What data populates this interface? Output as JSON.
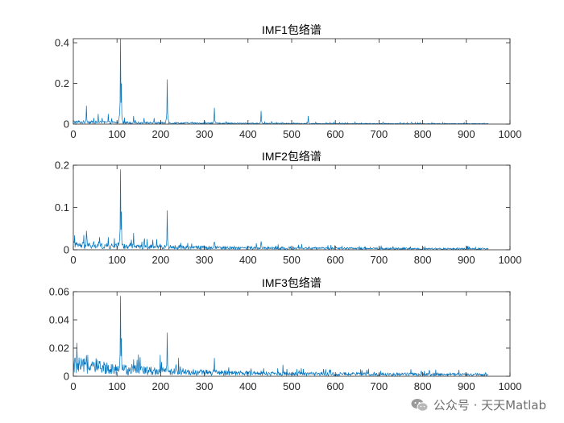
{
  "watermark": {
    "text": "公众号 · 天天Matlab"
  },
  "colors": {
    "line": "#0072BD",
    "axis": "#262626"
  },
  "chart_data": [
    {
      "type": "line",
      "title": "IMF1包络谱",
      "xlim": [
        0,
        1000
      ],
      "ylim": [
        0,
        0.42
      ],
      "xticks": [
        0,
        100,
        200,
        300,
        400,
        500,
        600,
        700,
        800,
        900,
        1000
      ],
      "yticks": [
        0,
        0.2,
        0.4
      ],
      "ytick_labels": [
        "0",
        "0.2",
        "0.4"
      ],
      "baseline": 0.004,
      "noise_decay": 250,
      "peaks": [
        [
          30,
          0.09
        ],
        [
          47,
          0.03
        ],
        [
          57,
          0.05
        ],
        [
          80,
          0.05
        ],
        [
          108,
          0.42
        ],
        [
          110,
          0.2
        ],
        [
          138,
          0.04
        ],
        [
          162,
          0.03
        ],
        [
          185,
          0.03
        ],
        [
          215,
          0.22
        ],
        [
          323,
          0.08
        ],
        [
          430,
          0.065
        ],
        [
          538,
          0.04
        ],
        [
          645,
          0.01
        ],
        [
          757,
          0.006
        ]
      ],
      "grid": false,
      "legend": "none"
    },
    {
      "type": "line",
      "title": "IMF2包络谱",
      "xlim": [
        0,
        1000
      ],
      "ylim": [
        0,
        0.2
      ],
      "xticks": [
        0,
        100,
        200,
        300,
        400,
        500,
        600,
        700,
        800,
        900,
        1000
      ],
      "yticks": [
        0,
        0.1,
        0.2
      ],
      "ytick_labels": [
        "0",
        "0.1",
        "0.2"
      ],
      "baseline": 0.004,
      "noise_decay": 350,
      "peaks": [
        [
          30,
          0.045
        ],
        [
          47,
          0.02
        ],
        [
          60,
          0.03
        ],
        [
          80,
          0.03
        ],
        [
          108,
          0.19
        ],
        [
          110,
          0.09
        ],
        [
          138,
          0.04
        ],
        [
          162,
          0.02
        ],
        [
          215,
          0.093
        ],
        [
          323,
          0.018
        ],
        [
          430,
          0.02
        ],
        [
          540,
          0.008
        ],
        [
          680,
          0.006
        ],
        [
          755,
          0.005
        ]
      ],
      "grid": false,
      "legend": "none"
    },
    {
      "type": "line",
      "title": "IMF3包络谱",
      "xlim": [
        0,
        1000
      ],
      "ylim": [
        0,
        0.06
      ],
      "xticks": [
        0,
        100,
        200,
        300,
        400,
        500,
        600,
        700,
        800,
        900,
        1000
      ],
      "yticks": [
        0,
        0.02,
        0.04,
        0.06
      ],
      "ytick_labels": [
        "0",
        "0.02",
        "0.04",
        "0.06"
      ],
      "baseline": 0.003,
      "noise_decay": 200,
      "peaks": [
        [
          30,
          0.015
        ],
        [
          47,
          0.008
        ],
        [
          60,
          0.009
        ],
        [
          80,
          0.008
        ],
        [
          108,
          0.057
        ],
        [
          110,
          0.027
        ],
        [
          138,
          0.012
        ],
        [
          162,
          0.007
        ],
        [
          215,
          0.031
        ],
        [
          245,
          0.007
        ],
        [
          323,
          0.013
        ],
        [
          430,
          0.004
        ]
      ],
      "grid": false,
      "legend": "none"
    }
  ]
}
